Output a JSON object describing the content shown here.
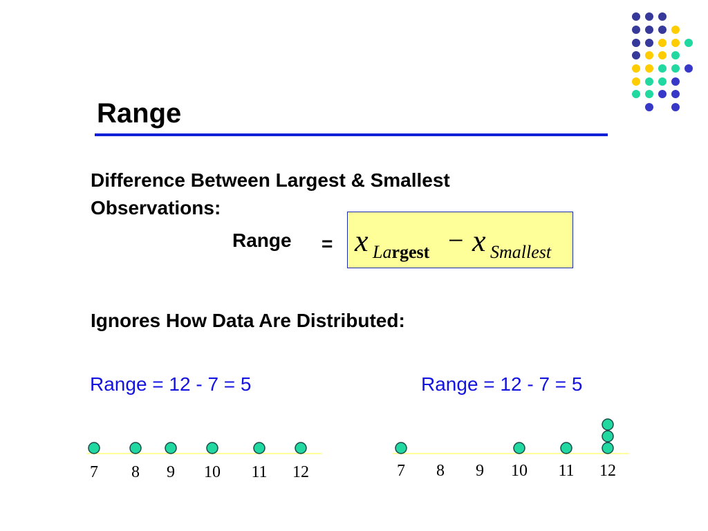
{
  "slide": {
    "title": "Range",
    "definition_line1": "Difference Between Largest & Smallest",
    "definition_line2": "Observations:",
    "formula_label": "Range",
    "formula_equals": "=",
    "formula": {
      "var1": "x",
      "sub1_a": "La",
      "sub1_b": "rgest",
      "minus": "−",
      "var2": "x",
      "sub2": "Smallest"
    },
    "ignores_text": "Ignores How Data Are Distributed:"
  },
  "examples": [
    {
      "caption": "Range = 12 - 7 = 5",
      "ticks": [
        "7",
        "8",
        "9",
        "10",
        "11",
        "12"
      ],
      "counts": [
        1,
        1,
        1,
        1,
        1,
        1
      ]
    },
    {
      "caption": "Range = 12 - 7 = 5",
      "ticks": [
        "7",
        "8",
        "9",
        "10",
        "11",
        "12"
      ],
      "counts": [
        1,
        0,
        0,
        1,
        1,
        3
      ]
    }
  ],
  "colors": {
    "title_rule": "#1020d8",
    "caption_text": "#1414e0",
    "formula_box": "#ffff99",
    "dot_fill": "#20d8a0",
    "dot_stroke": "#1a4a4a",
    "baseline": "#ffff99",
    "decor_navy": "#36389a",
    "decor_yellow": "#ffcc00",
    "decor_teal": "#20d8a0",
    "decor_blue": "#3838c8"
  }
}
